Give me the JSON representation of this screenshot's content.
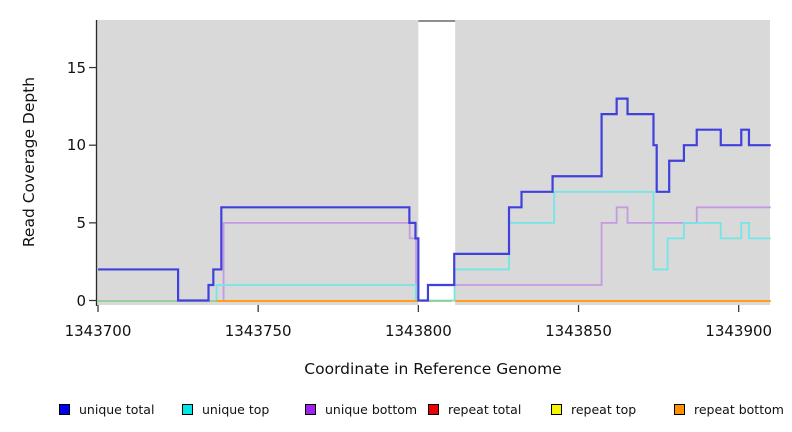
{
  "figure": {
    "xlabel": "Coordinate in Reference Genome",
    "ylabel": "Read Coverage Depth"
  },
  "legend": {
    "items": [
      {
        "label": "unique total",
        "swatch_color": "#0000ee"
      },
      {
        "label": "unique top",
        "swatch_color": "#00e5e5"
      },
      {
        "label": "unique bottom",
        "swatch_color": "#a020f0"
      },
      {
        "label": "repeat total",
        "swatch_color": "#ee0000"
      },
      {
        "label": "repeat top",
        "swatch_color": "#f5f500"
      },
      {
        "label": "repeat bottom",
        "swatch_color": "#ff9100"
      }
    ]
  },
  "chart_data": {
    "type": "line",
    "subtype": "step",
    "title": "",
    "xlabel": "Coordinate in Reference Genome",
    "ylabel": "Read Coverage Depth",
    "xlim": [
      1343700,
      1343910
    ],
    "ylim": [
      0,
      18
    ],
    "xticks": [
      1343700,
      1343750,
      1343800,
      1343850,
      1343900
    ],
    "xtick_labels": [
      "1343700",
      "1343750",
      "1343800",
      "1343850",
      "1343900"
    ],
    "yticks": [
      0,
      5,
      10,
      15
    ],
    "ytick_labels": [
      "0",
      "5",
      "10",
      "15"
    ],
    "grid": false,
    "legend_position": "bottom",
    "panel_background": "#d9d9d9",
    "uncovered_white_band": {
      "x0": 1343800,
      "x1": 1343811.5
    },
    "series": [
      {
        "name": "unique total",
        "line_color": "#4040dd",
        "draw_order": 5,
        "steps": [
          [
            1343700,
            2
          ],
          [
            1343725,
            0
          ],
          [
            1343734.5,
            1
          ],
          [
            1343736,
            2
          ],
          [
            1343738.5,
            6
          ],
          [
            1343797.2,
            5
          ],
          [
            1343799.1,
            4
          ],
          [
            1343800,
            0
          ],
          [
            1343803,
            1
          ],
          [
            1343811.2,
            3
          ],
          [
            1343828.3,
            6
          ],
          [
            1343832.2,
            7
          ],
          [
            1343841.9,
            8
          ],
          [
            1343857.2,
            12
          ],
          [
            1343861.9,
            13
          ],
          [
            1343865.3,
            12
          ],
          [
            1343873.4,
            10
          ],
          [
            1343874.4,
            7
          ],
          [
            1343878.3,
            9
          ],
          [
            1343882.9,
            10
          ],
          [
            1343886.9,
            11
          ],
          [
            1343894.4,
            10
          ],
          [
            1343900.8,
            11
          ],
          [
            1343903.2,
            10
          ],
          [
            1343910,
            10
          ]
        ]
      },
      {
        "name": "unique top",
        "line_color": "#74e6e6",
        "draw_order": 2,
        "steps": [
          [
            1343736.8,
            0
          ],
          [
            1343737,
            1
          ],
          [
            1343799.2,
            0
          ],
          [
            1343811.3,
            2
          ],
          [
            1343828.3,
            5
          ],
          [
            1343842.4,
            7
          ],
          [
            1343873.4,
            2
          ],
          [
            1343877.8,
            4
          ],
          [
            1343882.9,
            5
          ],
          [
            1343894.4,
            4
          ],
          [
            1343900.8,
            5
          ],
          [
            1343903.2,
            4
          ],
          [
            1343910,
            4
          ]
        ]
      },
      {
        "name": "unique bottom",
        "line_color": "#c59ae2",
        "draw_order": 1,
        "steps": [
          [
            1343738.9,
            0
          ],
          [
            1343739.2,
            5
          ],
          [
            1343797.3,
            4
          ],
          [
            1343799.3,
            0
          ],
          [
            1343803,
            1
          ],
          [
            1343857.2,
            5
          ],
          [
            1343861.9,
            6
          ],
          [
            1343865.3,
            5
          ],
          [
            1343886.9,
            6
          ],
          [
            1343910,
            6
          ]
        ]
      },
      {
        "name": "repeat total",
        "line_color": "#ee0000",
        "draw_order": 0,
        "visible": false,
        "steps": [
          [
            1343700,
            0
          ],
          [
            1343910,
            0
          ]
        ],
        "note": "depth 0 everywhere; hidden beneath other zero-depth lines"
      },
      {
        "name": "repeat top",
        "line_color": "#f5f500",
        "draw_order": 0,
        "visible": false,
        "steps": [
          [
            1343700,
            0
          ],
          [
            1343910,
            0
          ]
        ],
        "note": "depth 0; overlap with cyan renders as the pale green zero line"
      },
      {
        "name": "repeat bottom",
        "line_color": "#ff9e1b",
        "draw_order": 4,
        "value": 0,
        "zero_segments": [
          [
            1343737,
            1343800
          ],
          [
            1343811.5,
            1343910
          ]
        ]
      }
    ],
    "zero_overlap_green": {
      "color": "#8fce91",
      "value": 0,
      "segments": [
        [
          1343700,
          1343737
        ],
        [
          1343800.5,
          1343810.5
        ]
      ]
    }
  }
}
